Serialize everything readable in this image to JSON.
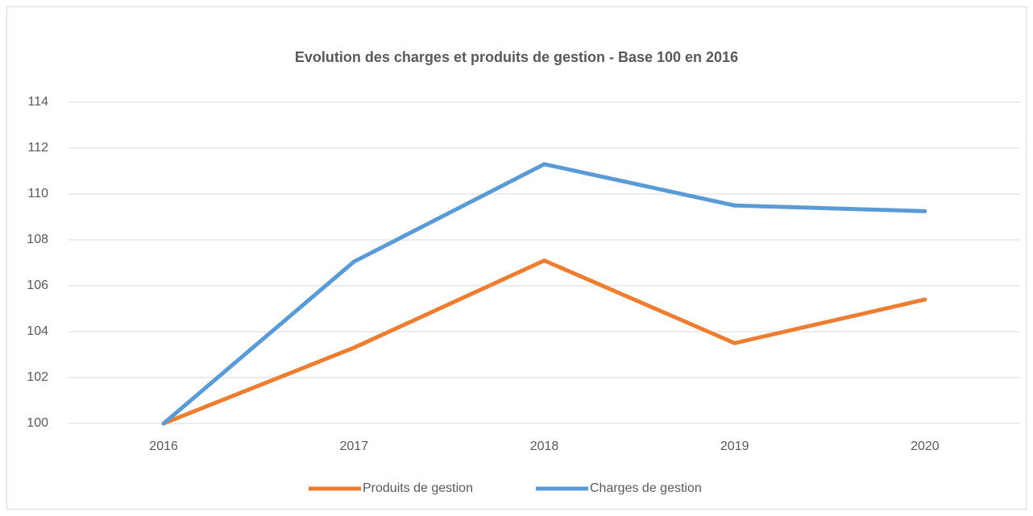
{
  "chart_data": {
    "type": "line",
    "title": "Evolution des charges et produits de gestion - Base 100 en 2016",
    "categories": [
      "2016",
      "2017",
      "2018",
      "2019",
      "2020"
    ],
    "series": [
      {
        "name": "Produits de gestion",
        "color": "#ed7d31",
        "values": [
          100,
          103.3,
          107.1,
          103.5,
          105.4
        ]
      },
      {
        "name": "Charges de gestion",
        "color": "#5b9bd5",
        "values": [
          100,
          107.05,
          111.3,
          109.5,
          109.25
        ]
      }
    ],
    "ylim": [
      100,
      114
    ],
    "yticks": [
      100,
      102,
      104,
      106,
      108,
      110,
      112,
      114
    ],
    "grid": true,
    "legend": "bottom"
  }
}
